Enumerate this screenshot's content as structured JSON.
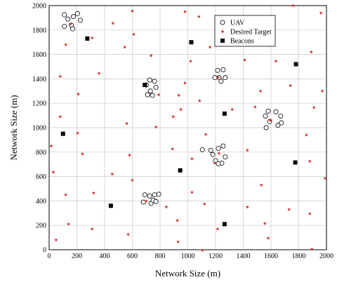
{
  "chart_data": {
    "type": "scatter",
    "title": "",
    "xlabel": "Network Size (m)",
    "ylabel": "Network Size (m)",
    "xlim": [
      0,
      2000
    ],
    "ylim": [
      0,
      2000
    ],
    "xticks": [
      "0",
      "200",
      "400",
      "600",
      "800",
      "1000",
      "1200",
      "1400",
      "1600",
      "1800",
      "2000"
    ],
    "yticks": [
      "0",
      "200",
      "400",
      "600",
      "800",
      "1000",
      "1200",
      "1400",
      "1600",
      "1800",
      "2000"
    ],
    "grid": true,
    "legend_position": "top-right",
    "series": [
      {
        "name": "UAV",
        "marker": "open-circle",
        "color": "#000000",
        "points": [
          [
            110,
            1925
          ],
          [
            135,
            1890
          ],
          [
            110,
            1830
          ],
          [
            160,
            1840
          ],
          [
            175,
            1910
          ],
          [
            205,
            1935
          ],
          [
            225,
            1880
          ],
          [
            170,
            1810
          ],
          [
            725,
            1390
          ],
          [
            760,
            1380
          ],
          [
            700,
            1350
          ],
          [
            770,
            1330
          ],
          [
            730,
            1300
          ],
          [
            745,
            1265
          ],
          [
            710,
            1270
          ],
          [
            1215,
            1470
          ],
          [
            1255,
            1475
          ],
          [
            1195,
            1410
          ],
          [
            1270,
            1410
          ],
          [
            1240,
            1380
          ],
          [
            1225,
            1410
          ],
          [
            1580,
            1135
          ],
          [
            1635,
            1130
          ],
          [
            1670,
            1095
          ],
          [
            1560,
            1095
          ],
          [
            1590,
            1050
          ],
          [
            1675,
            1040
          ],
          [
            1650,
            1020
          ],
          [
            1565,
            1000
          ],
          [
            1105,
            820
          ],
          [
            1165,
            815
          ],
          [
            1220,
            830
          ],
          [
            1255,
            850
          ],
          [
            1180,
            780
          ],
          [
            1270,
            760
          ],
          [
            1200,
            730
          ],
          [
            1245,
            710
          ],
          [
            1220,
            705
          ],
          [
            690,
            450
          ],
          [
            725,
            440
          ],
          [
            760,
            450
          ],
          [
            790,
            455
          ],
          [
            680,
            390
          ],
          [
            735,
            380
          ],
          [
            750,
            405
          ],
          [
            770,
            395
          ]
        ]
      },
      {
        "name": "Desired Target",
        "marker": "red-star",
        "color": "#d32b2b",
        "points": [
          [
            1760,
            2000
          ],
          [
            1960,
            1940
          ],
          [
            980,
            1950
          ],
          [
            1080,
            1910
          ],
          [
            600,
            1955
          ],
          [
            460,
            1855
          ],
          [
            155,
            1850
          ],
          [
            1160,
            1660
          ],
          [
            610,
            1765
          ],
          [
            310,
            1735
          ],
          [
            735,
            1590
          ],
          [
            545,
            1660
          ],
          [
            120,
            1680
          ],
          [
            1635,
            1545
          ],
          [
            1410,
            1555
          ],
          [
            1890,
            1620
          ],
          [
            1020,
            1545
          ],
          [
            1220,
            1410
          ],
          [
            1525,
            1300
          ],
          [
            980,
            1365
          ],
          [
            1740,
            1345
          ],
          [
            210,
            1275
          ],
          [
            360,
            1445
          ],
          [
            80,
            1420
          ],
          [
            1970,
            1300
          ],
          [
            1085,
            1220
          ],
          [
            935,
            1265
          ],
          [
            950,
            1150
          ],
          [
            790,
            1270
          ],
          [
            560,
            1035
          ],
          [
            1320,
            1150
          ],
          [
            1600,
            1060
          ],
          [
            1910,
            1165
          ],
          [
            1485,
            1170
          ],
          [
            80,
            1090
          ],
          [
            895,
            1090
          ],
          [
            770,
            1005
          ],
          [
            1130,
            945
          ],
          [
            205,
            955
          ],
          [
            1855,
            940
          ],
          [
            1595,
            1060
          ],
          [
            15,
            850
          ],
          [
            890,
            825
          ],
          [
            240,
            785
          ],
          [
            1430,
            815
          ],
          [
            1880,
            725
          ],
          [
            1225,
            790
          ],
          [
            580,
            775
          ],
          [
            1030,
            745
          ],
          [
            30,
            635
          ],
          [
            455,
            620
          ],
          [
            1195,
            710
          ],
          [
            950,
            655
          ],
          [
            1990,
            585
          ],
          [
            600,
            570
          ],
          [
            1530,
            530
          ],
          [
            120,
            450
          ],
          [
            320,
            465
          ],
          [
            1030,
            470
          ],
          [
            700,
            400
          ],
          [
            1120,
            375
          ],
          [
            845,
            350
          ],
          [
            1430,
            350
          ],
          [
            1730,
            330
          ],
          [
            1880,
            295
          ],
          [
            925,
            240
          ],
          [
            140,
            210
          ],
          [
            1555,
            215
          ],
          [
            310,
            170
          ],
          [
            1215,
            170
          ],
          [
            570,
            125
          ],
          [
            1580,
            95
          ],
          [
            50,
            80
          ],
          [
            930,
            65
          ],
          [
            1895,
            5
          ],
          [
            1105,
            -5
          ]
        ]
      },
      {
        "name": "Beacons",
        "marker": "filled-square",
        "color": "#000000",
        "points": [
          [
            275,
            1730
          ],
          [
            1025,
            1700
          ],
          [
            1780,
            1520
          ],
          [
            690,
            1350
          ],
          [
            1265,
            1115
          ],
          [
            100,
            950
          ],
          [
            945,
            650
          ],
          [
            1775,
            715
          ],
          [
            445,
            360
          ],
          [
            1265,
            210
          ]
        ]
      }
    ]
  }
}
